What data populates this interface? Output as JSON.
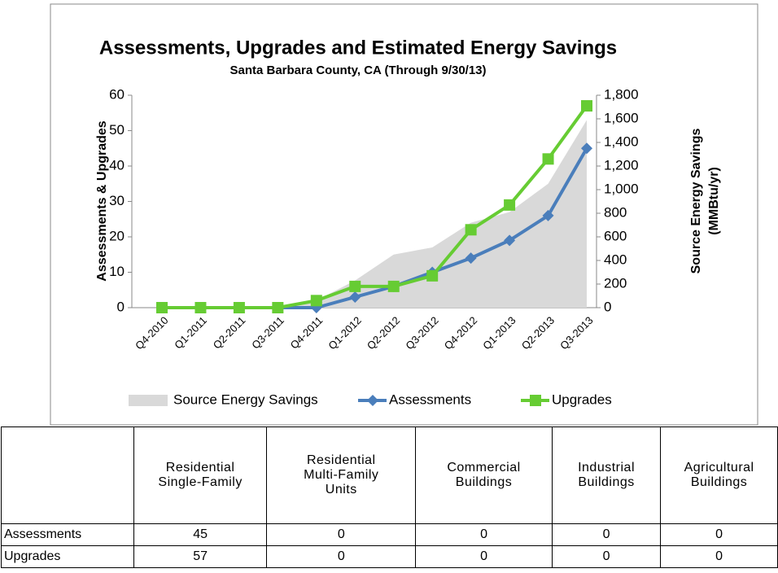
{
  "chart_data": {
    "type": "line",
    "title": "Assessments, Upgrades and Estimated Energy Savings",
    "subtitle": "Santa Barbara County, CA (Through 9/30/13)",
    "ylabel": "Assessments & Upgrades",
    "y2label": [
      "Source Energy Savings",
      "(MMBtu/yr)"
    ],
    "categories": [
      "Q4-2010",
      "Q1-2011",
      "Q2-2011",
      "Q3-2011",
      "Q4-2011",
      "Q1-2012",
      "Q2-2012",
      "Q3-2012",
      "Q4-2012",
      "Q1-2013",
      "Q2-2013",
      "Q3-2013"
    ],
    "series": [
      {
        "name": "Source Energy Savings",
        "type": "area",
        "axis": "y2",
        "color": "#d9d9d9",
        "values": [
          0,
          0,
          0,
          0,
          60,
          230,
          450,
          510,
          720,
          810,
          1050,
          1590
        ]
      },
      {
        "name": "Assessments",
        "type": "line",
        "marker": "diamond",
        "color": "#4a7ebb",
        "values": [
          0,
          0,
          0,
          0,
          0,
          3,
          6,
          10,
          14,
          19,
          26,
          45
        ]
      },
      {
        "name": "Upgrades",
        "type": "line",
        "marker": "square",
        "color": "#66cc33",
        "values": [
          0,
          0,
          0,
          0,
          2,
          6,
          6,
          9,
          22,
          29,
          42,
          57
        ]
      }
    ],
    "ylim": [
      0,
      60
    ],
    "yticks": [
      0,
      10,
      20,
      30,
      40,
      50,
      60
    ],
    "y2lim": [
      0,
      1800
    ],
    "y2ticks": [
      0,
      200,
      400,
      600,
      800,
      {
        "value": 1000,
        "label": "1,000"
      },
      {
        "value": 1200,
        "label": "1,200"
      },
      {
        "value": 1400,
        "label": "1,400"
      },
      {
        "value": 1600,
        "label": "1,600"
      },
      {
        "value": 1800,
        "label": "1,800"
      }
    ],
    "grid": false,
    "legend": "bottom"
  },
  "table": {
    "header": [
      [],
      [
        "Residential",
        "Single-Family"
      ],
      [
        "Residential",
        "Multi-Family",
        "Units"
      ],
      [
        "Commercial",
        "Buildings"
      ],
      [
        "Industrial",
        "Buildings"
      ],
      [
        "Agricultural",
        "Buildings"
      ]
    ],
    "rows": [
      [
        "Assessments",
        "45",
        "0",
        "0",
        "0",
        "0"
      ],
      [
        "Upgrades",
        "57",
        "0",
        "0",
        "0",
        "0"
      ]
    ]
  }
}
